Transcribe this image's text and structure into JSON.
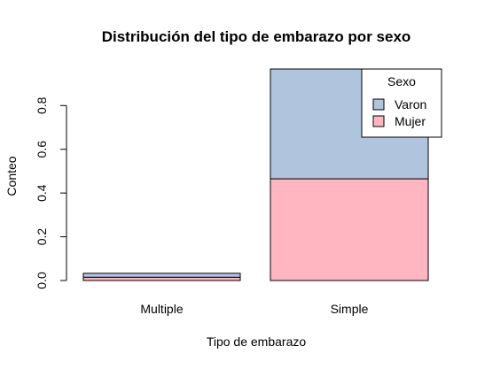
{
  "chart_data": {
    "type": "bar",
    "stacked": true,
    "title": "Distribución del tipo de embarazo por sexo",
    "xlabel": "Tipo de embarazo",
    "ylabel": "Conteo",
    "categories": [
      "Multiple",
      "Simple"
    ],
    "series": [
      {
        "name": "Mujer",
        "color": "#FFB6C1",
        "values": [
          0.015,
          0.465
        ]
      },
      {
        "name": "Varon",
        "color": "#B0C4DE",
        "values": [
          0.018,
          0.502
        ]
      }
    ],
    "yticks": [
      "0.0",
      "0.2",
      "0.4",
      "0.6",
      "0.8"
    ],
    "ylim": [
      0,
      0.967
    ],
    "legend": {
      "title": "Sexo",
      "placement": "top-right",
      "entries": [
        "Varon",
        "Mujer"
      ]
    },
    "grid": false
  }
}
